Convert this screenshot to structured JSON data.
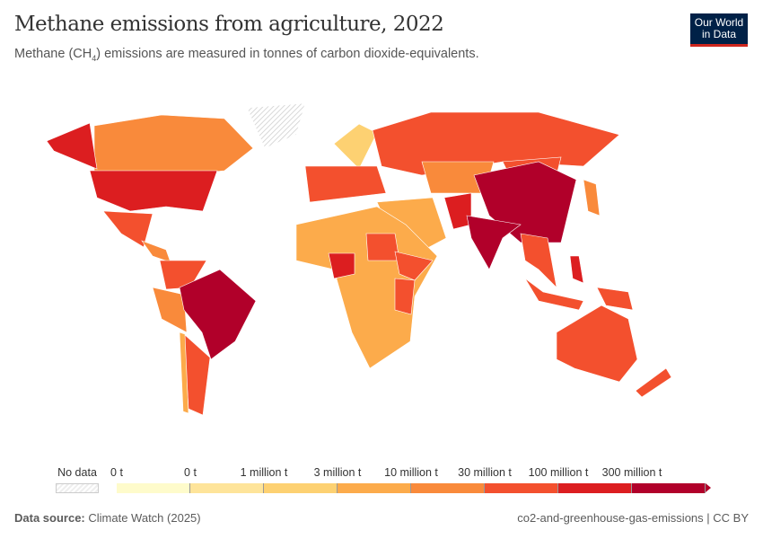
{
  "header": {
    "title": "Methane emissions from agriculture, 2022",
    "subtitle_pre": "Methane (CH",
    "subtitle_sub": "4",
    "subtitle_post": ") emissions are measured in tonnes of carbon dioxide-equivalents.",
    "logo_line1": "Our World",
    "logo_line2": "in Data"
  },
  "legend": {
    "no_data": "No data",
    "labels": [
      "0 t",
      "0 t",
      "1 million t",
      "3 million t",
      "10 million t",
      "30 million t",
      "100 million t",
      "300 million t"
    ],
    "colors": [
      "#fefbcb",
      "#fee49a",
      "#fdd172",
      "#fcab4b",
      "#f98a3b",
      "#f3502e",
      "#dc1e20",
      "#b1002a"
    ],
    "no_data_pattern": "hatched-grey"
  },
  "footer": {
    "source_label": "Data source:",
    "source": "Climate Watch (2025)",
    "right": "co2-and-greenhouse-gas-emissions | CC BY"
  }
}
